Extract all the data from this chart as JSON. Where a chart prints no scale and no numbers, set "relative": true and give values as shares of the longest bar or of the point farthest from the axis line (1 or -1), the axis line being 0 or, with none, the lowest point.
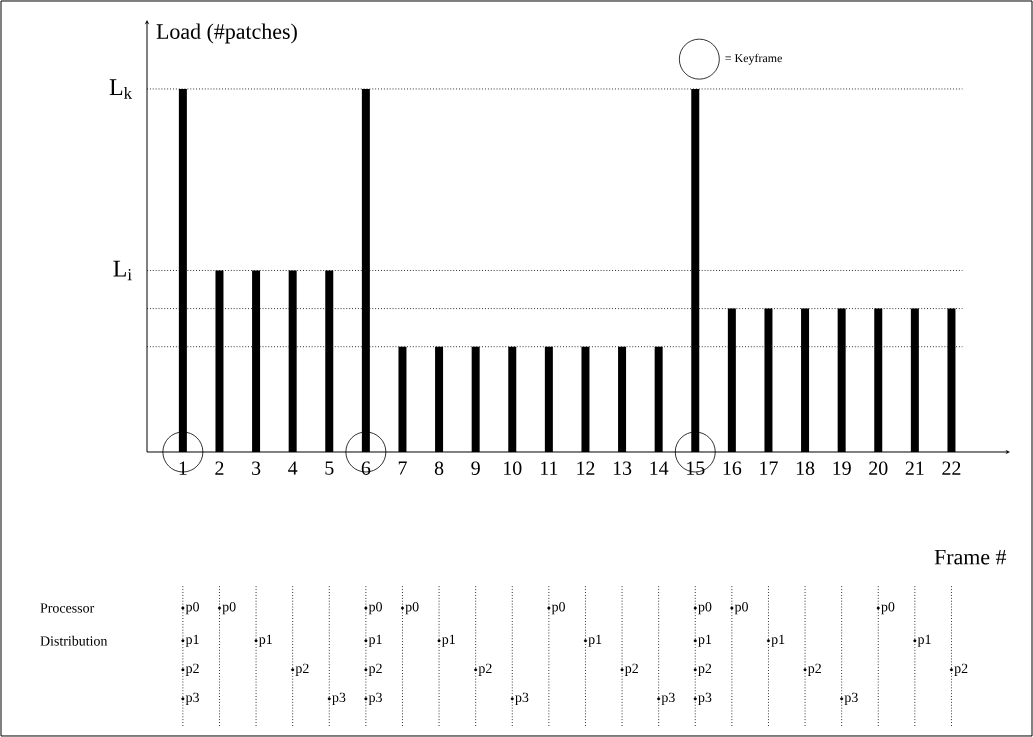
{
  "chart_data": {
    "type": "bar",
    "relative": true,
    "xlabel": "Frame #",
    "ylabel": "Load (#patches)",
    "categories": [
      "1",
      "2",
      "3",
      "4",
      "5",
      "6",
      "7",
      "8",
      "9",
      "10",
      "11",
      "12",
      "13",
      "14",
      "15",
      "16",
      "17",
      "18",
      "19",
      "20",
      "21",
      "22"
    ],
    "series": [
      {
        "color": "#000000",
        "values": [
          1,
          0.5,
          0.5,
          0.5,
          0.5,
          1,
          0.29,
          0.29,
          0.29,
          0.29,
          0.29,
          0.29,
          0.29,
          0.29,
          1,
          0.395,
          0.395,
          0.395,
          0.395,
          0.395,
          0.395,
          0.395
        ]
      },
      {
        "type": "scatter",
        "name": "= Keyframe",
        "color": "#000000",
        "marker": "circle",
        "x": [
          "1",
          "6",
          "15"
        ],
        "values": [
          0,
          0,
          0
        ]
      },
      {
        "type": "scatter",
        "name": "p0",
        "color": "#000000",
        "marker": "circle",
        "x": [
          "1",
          "2",
          "6",
          "7",
          "11",
          "15",
          "16",
          "20"
        ],
        "values": [
          -0.43,
          -0.43,
          -0.43,
          -0.43,
          -0.43,
          -0.43,
          -0.43,
          -0.43
        ]
      },
      {
        "type": "scatter",
        "name": "p1",
        "color": "#000000",
        "marker": "circle",
        "x": [
          "1",
          "3",
          "6",
          "8",
          "12",
          "15",
          "17",
          "21"
        ],
        "values": [
          -0.52,
          -0.52,
          -0.52,
          -0.52,
          -0.52,
          -0.52,
          -0.52,
          -0.52
        ]
      },
      {
        "type": "scatter",
        "name": "p2",
        "color": "#000000",
        "marker": "circle",
        "x": [
          "1",
          "4",
          "6",
          "9",
          "13",
          "15",
          "18",
          "22"
        ],
        "values": [
          -0.6,
          -0.6,
          -0.6,
          -0.6,
          -0.6,
          -0.6,
          -0.6,
          -0.6
        ]
      },
      {
        "type": "scatter",
        "name": "p3",
        "color": "#000000",
        "marker": "circle",
        "x": [
          "1",
          "5",
          "6",
          "10",
          "14",
          "15",
          "19"
        ],
        "values": [
          -0.68,
          -0.68,
          -0.68,
          -0.68,
          -0.68,
          -0.68,
          -0.68
        ]
      }
    ],
    "ref_lines": [
      {
        "axis": "y",
        "value": 1,
        "label": "L$_{k}$",
        "line_style": "dotted"
      },
      {
        "axis": "y",
        "value": 0.5,
        "label": "L$_{i}$",
        "line_style": "dotted"
      },
      {
        "axis": "y",
        "value": 0.395,
        "line_style": "dotted"
      },
      {
        "axis": "y",
        "value": 0.29,
        "line_style": "dotted"
      }
    ],
    "legend": "top",
    "annotations": [
      "Processor",
      "Distribution"
    ]
  }
}
